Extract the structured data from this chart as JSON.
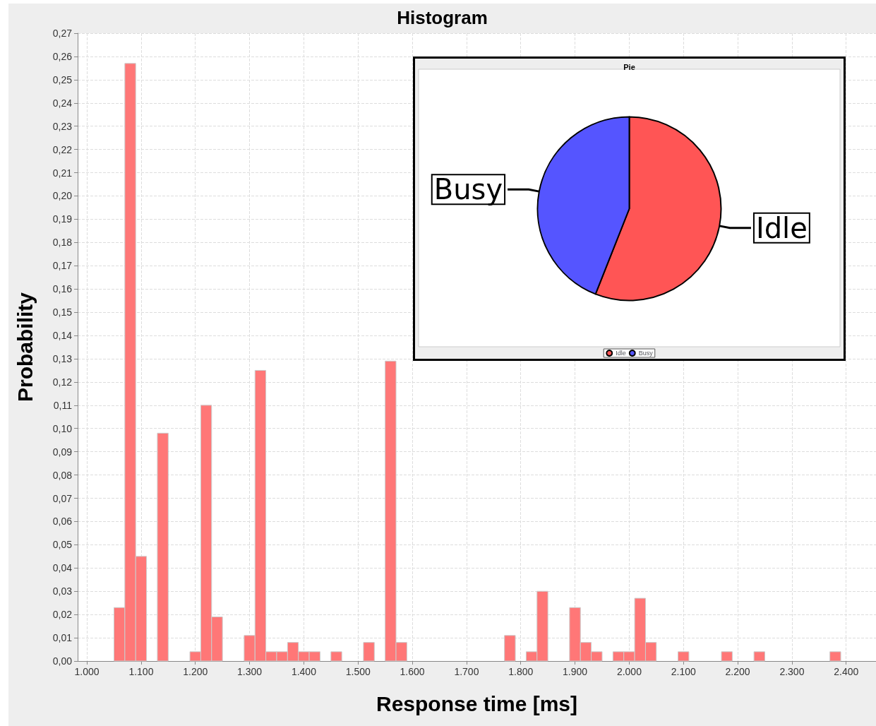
{
  "chart_data": [
    {
      "type": "histogram",
      "title": "Histogram",
      "xlabel": "Response time [ms]",
      "ylabel": "Probability",
      "color": "#ff7777",
      "grid": true,
      "bins": [
        1050,
        1070,
        1090,
        1110,
        1130,
        1150,
        1170,
        1190,
        1210,
        1230,
        1250,
        1270,
        1290,
        1310,
        1330,
        1350,
        1370,
        1390,
        1410,
        1430,
        1450,
        1470,
        1490,
        1510,
        1530,
        1550,
        1570,
        1590,
        1610,
        1630,
        1650,
        1670,
        1690,
        1710,
        1730,
        1750,
        1770,
        1790,
        1810,
        1830,
        1850,
        1870,
        1890,
        1910,
        1930,
        1950,
        1970,
        1990,
        2010,
        2030,
        2050,
        2070,
        2090,
        2110,
        2130,
        2150,
        2170,
        2190,
        2210,
        2230,
        2250,
        2270,
        2290,
        2310,
        2330,
        2350,
        2370,
        2390
      ],
      "values": [
        0.023,
        0.257,
        0.045,
        0,
        0.098,
        0,
        0,
        0.004,
        0.11,
        0.019,
        0,
        0,
        0.011,
        0.125,
        0.004,
        0.004,
        0.008,
        0.004,
        0.004,
        0,
        0.004,
        0,
        0,
        0.008,
        0,
        0.129,
        0.008,
        0,
        0,
        0,
        0,
        0,
        0,
        0,
        0,
        0,
        0.011,
        0,
        0.004,
        0.03,
        0,
        0,
        0.023,
        0.008,
        0.004,
        0,
        0.004,
        0.004,
        0.027,
        0.008,
        0,
        0,
        0.004,
        0,
        0,
        0,
        0.004,
        0,
        0,
        0.004,
        0,
        0,
        0,
        0,
        0,
        0,
        0.004
      ],
      "xlim": [
        983,
        2455
      ],
      "xticks": [
        {
          "value": 1000,
          "label": "1.000"
        },
        {
          "value": 1100,
          "label": "1.100"
        },
        {
          "value": 1200,
          "label": "1.200"
        },
        {
          "value": 1300,
          "label": "1.300"
        },
        {
          "value": 1400,
          "label": "1.400"
        },
        {
          "value": 1500,
          "label": "1.500"
        },
        {
          "value": 1600,
          "label": "1.600"
        },
        {
          "value": 1700,
          "label": "1.700"
        },
        {
          "value": 1800,
          "label": "1.800"
        },
        {
          "value": 1900,
          "label": "1.900"
        },
        {
          "value": 2000,
          "label": "2.000"
        },
        {
          "value": 2100,
          "label": "2.100"
        },
        {
          "value": 2200,
          "label": "2.200"
        },
        {
          "value": 2300,
          "label": "2.300"
        },
        {
          "value": 2400,
          "label": "2.400"
        }
      ],
      "ylim": [
        0,
        0.27
      ],
      "yticks": [
        {
          "value": 0,
          "label": "0,00"
        },
        {
          "value": 0.01,
          "label": "0,01"
        },
        {
          "value": 0.02,
          "label": "0,02"
        },
        {
          "value": 0.03,
          "label": "0,03"
        },
        {
          "value": 0.04,
          "label": "0,04"
        },
        {
          "value": 0.05,
          "label": "0,05"
        },
        {
          "value": 0.06,
          "label": "0,06"
        },
        {
          "value": 0.07,
          "label": "0,07"
        },
        {
          "value": 0.08,
          "label": "0,08"
        },
        {
          "value": 0.09,
          "label": "0,09"
        },
        {
          "value": 0.1,
          "label": "0,10"
        },
        {
          "value": 0.11,
          "label": "0,11"
        },
        {
          "value": 0.12,
          "label": "0,12"
        },
        {
          "value": 0.13,
          "label": "0,13"
        },
        {
          "value": 0.14,
          "label": "0,14"
        },
        {
          "value": 0.15,
          "label": "0,15"
        },
        {
          "value": 0.16,
          "label": "0,16"
        },
        {
          "value": 0.17,
          "label": "0,17"
        },
        {
          "value": 0.18,
          "label": "0,18"
        },
        {
          "value": 0.19,
          "label": "0,19"
        },
        {
          "value": 0.2,
          "label": "0,20"
        },
        {
          "value": 0.21,
          "label": "0,21"
        },
        {
          "value": 0.22,
          "label": "0,22"
        },
        {
          "value": 0.23,
          "label": "0,23"
        },
        {
          "value": 0.24,
          "label": "0,24"
        },
        {
          "value": 0.25,
          "label": "0,25"
        },
        {
          "value": 0.26,
          "label": "0,26"
        },
        {
          "value": 0.27,
          "label": "0,27"
        }
      ]
    },
    {
      "type": "pie",
      "title": "Pie",
      "categories": [
        "Idle",
        "Busy"
      ],
      "values": [
        56,
        44
      ],
      "colors": [
        "#ff5555",
        "#5555ff"
      ],
      "legend": "bottom"
    }
  ]
}
